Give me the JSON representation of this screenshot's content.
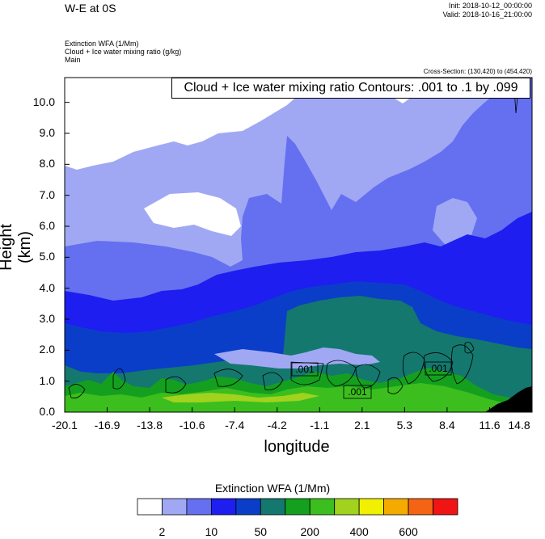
{
  "header": {
    "title": "W-E at 0S",
    "init": "Init: 2018-10-12_00:00:00",
    "valid": "Valid: 2018-10-16_21:00:00",
    "field1": "Extinction WFA   (1/Mm)",
    "field2": "Cloud + Ice water mixing ratio   (g/kg)",
    "field3": "Main",
    "cross_section": "Cross-Section: (130,420) to (454,420)"
  },
  "contour_note": "Cloud + Ice water mixing ratio Contours: .001 to .1 by .099",
  "chart_data": {
    "type": "heatmap",
    "xlabel": "longitude",
    "ylabel": "Height (km)",
    "xlim": [
      -20.1,
      14.8
    ],
    "ylim": [
      0.0,
      10.8
    ],
    "x_ticks": [
      "-20.1",
      "-16.9",
      "-13.8",
      "-10.6",
      "-7.4",
      "-4.2",
      "-1.1",
      "2.1",
      "5.3",
      "8.4",
      "11.6",
      "14.8"
    ],
    "y_ticks": [
      "0.0",
      "1.0",
      "2.0",
      "3.0",
      "4.0",
      "5.0",
      "6.0",
      "7.0",
      "8.0",
      "9.0",
      "10.0"
    ],
    "contour_labels": [
      ".001",
      ".001",
      ".001"
    ],
    "colorbar": {
      "title": "Extinction WFA  (1/Mm)",
      "colors": [
        "#ffffff",
        "#a0a8f4",
        "#6470f0",
        "#1e1ef0",
        "#0a3ec8",
        "#14786e",
        "#14a01e",
        "#3cbe1e",
        "#a0d21e",
        "#f0f000",
        "#f5aa00",
        "#f56414",
        "#f01414"
      ],
      "labels": [
        "2",
        "10",
        "50",
        "200",
        "400",
        "600"
      ]
    }
  }
}
